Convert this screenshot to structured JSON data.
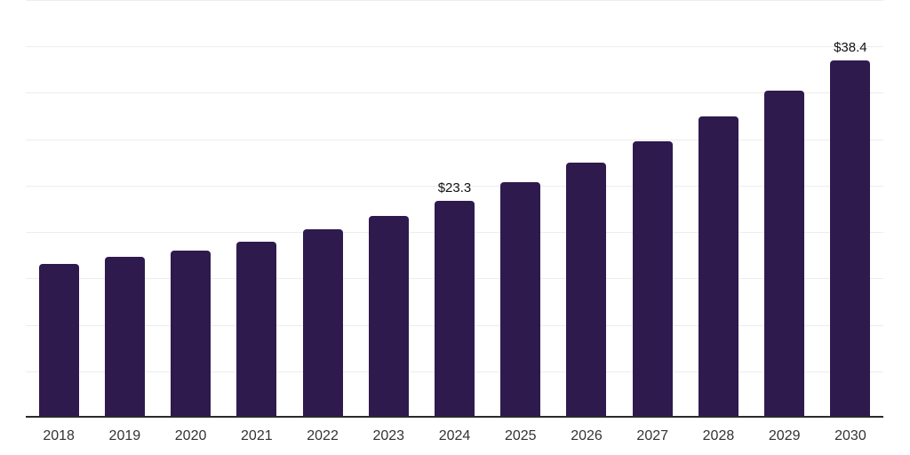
{
  "chart_data": {
    "type": "bar",
    "title": "",
    "categories": [
      "2018",
      "2019",
      "2020",
      "2021",
      "2022",
      "2023",
      "2024",
      "2025",
      "2026",
      "2027",
      "2028",
      "2029",
      "2030"
    ],
    "values": [
      16.5,
      17.2,
      17.9,
      18.9,
      20.2,
      21.6,
      23.3,
      25.3,
      27.4,
      29.7,
      32.4,
      35.1,
      38.4
    ],
    "data_labels": [
      {
        "category": "2024",
        "text": "$23.3"
      },
      {
        "category": "2030",
        "text": "$38.4"
      }
    ],
    "xlabel": "",
    "ylabel": "",
    "ylim": [
      0,
      45
    ],
    "gridline_step": 5,
    "grid": true,
    "y_tick_labels_shown": false,
    "legend": "none",
    "colors": {
      "bar": "#2F1A4E",
      "axis_line": "#2b2b2b",
      "gridline": "#ededed",
      "tick_label": "#333333",
      "data_label": "#111111",
      "background": "#ffffff"
    }
  }
}
